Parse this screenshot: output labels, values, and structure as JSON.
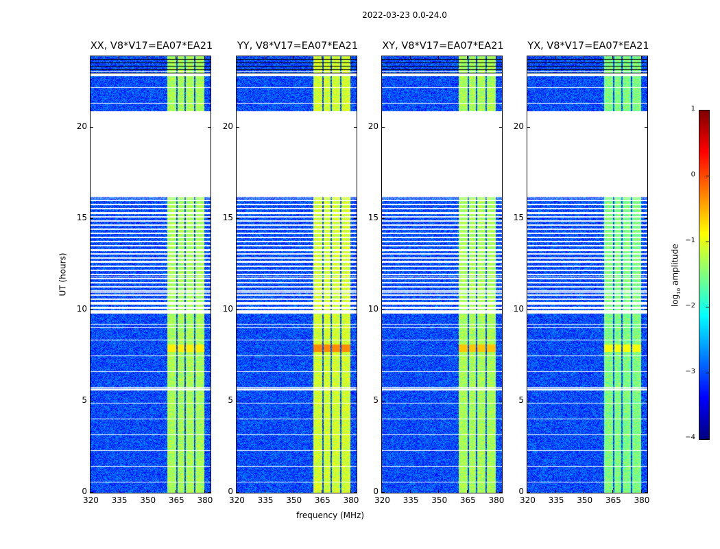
{
  "suptitle": "2022-03-23 0.0-24.0",
  "chart_data": {
    "type": "heatmap",
    "title": "2022-03-23 0.0-24.0",
    "xlabel": "frequency (MHz)",
    "ylabel": "UT (hours)",
    "xlim": [
      320,
      384
    ],
    "ylim": [
      0,
      24
    ],
    "xticks": [
      "320",
      "335",
      "350",
      "365",
      "380"
    ],
    "xtick_values": [
      320,
      335,
      350,
      365,
      380
    ],
    "yticks": [
      "0",
      "5",
      "10",
      "15",
      "20"
    ],
    "ytick_values": [
      0,
      5,
      10,
      15,
      20
    ],
    "panels": [
      {
        "title": "XX, V8*V17=EA07*EA21",
        "band_level": -1.3,
        "peak_level": -0.8
      },
      {
        "title": "YY, V8*V17=EA07*EA21",
        "band_level": -1.1,
        "peak_level": -0.3
      },
      {
        "title": "XY, V8*V17=EA07*EA21",
        "band_level": -1.3,
        "peak_level": -0.6
      },
      {
        "title": "YX, V8*V17=EA07*EA21",
        "band_level": -1.5,
        "peak_level": -0.9
      }
    ],
    "background_level": -3.0,
    "bright_bands_mhz": [
      [
        360.4,
        365.2
      ],
      [
        365.9,
        369.5
      ],
      [
        370.2,
        374.6
      ],
      [
        375.3,
        380.0
      ]
    ],
    "data_blocks_ut": [
      [
        0,
        5.6
      ],
      [
        5.7,
        9.0
      ],
      [
        9.05,
        9.8
      ],
      [
        10.0,
        10.3
      ],
      [
        10.45,
        13.2
      ],
      [
        13.3,
        16.2
      ],
      [
        20.9,
        22.8
      ],
      [
        22.95,
        24
      ]
    ],
    "peak_ut": [
      7.7,
      8.1
    ],
    "colorbar": {
      "label": "log10 amplitude",
      "label_main": "log",
      "label_sub": "10",
      "label_rest": " amplitude",
      "range": [
        -4,
        1
      ],
      "ticks": [
        "1",
        "0",
        "−1",
        "−2",
        "−3",
        "−4"
      ],
      "tick_values": [
        1,
        0,
        -1,
        -2,
        -3,
        -4
      ],
      "colormap": "jet"
    }
  }
}
